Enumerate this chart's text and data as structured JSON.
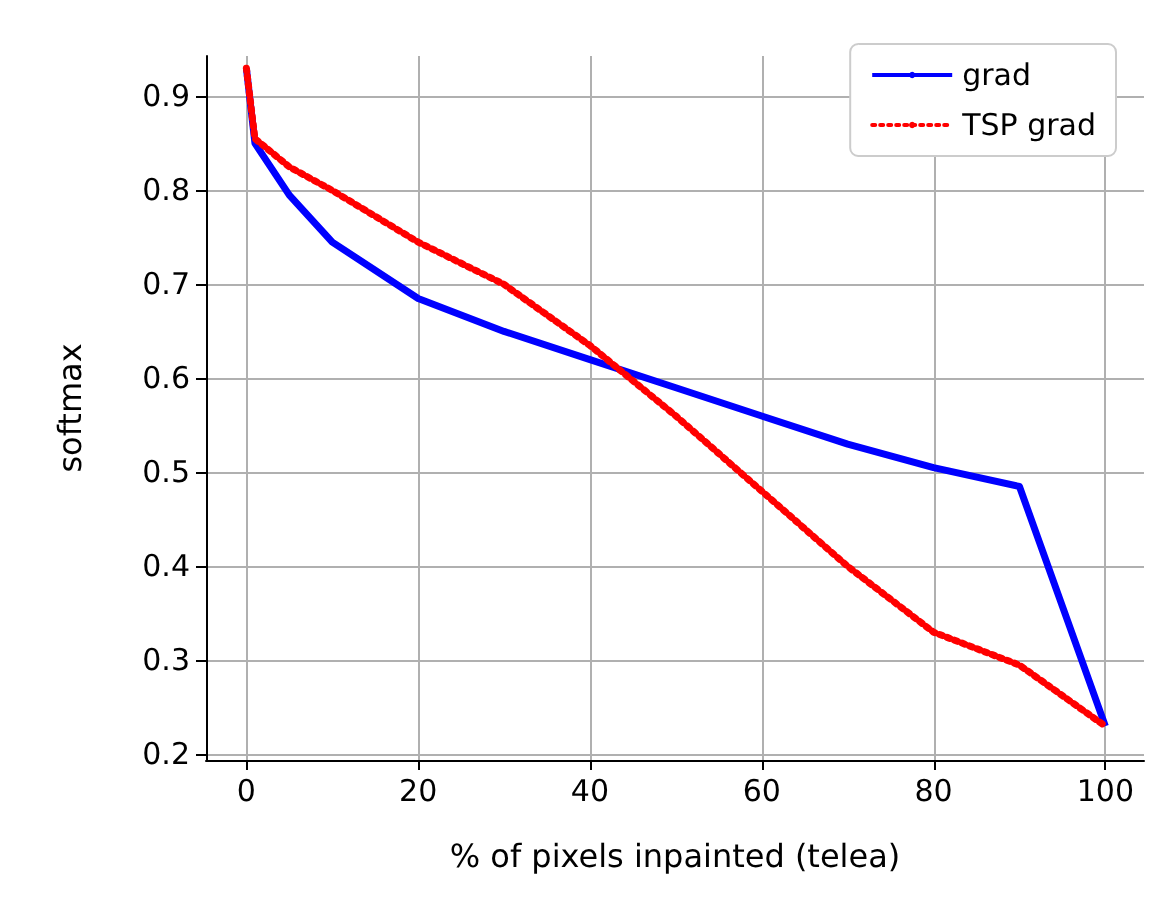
{
  "chart_data": {
    "type": "line",
    "xlabel": "% of pixels inpainted (telea)",
    "ylabel": "softmax",
    "x": [
      0,
      1,
      5,
      10,
      20,
      30,
      40,
      50,
      60,
      70,
      80,
      90,
      100
    ],
    "series": [
      {
        "name": "grad",
        "color": "#0000ff",
        "line_style": "solid",
        "values": [
          0.93,
          0.85,
          0.795,
          0.745,
          0.685,
          0.65,
          0.62,
          0.59,
          0.56,
          0.53,
          0.505,
          0.485,
          0.23
        ]
      },
      {
        "name": "TSP grad",
        "color": "#ff0000",
        "line_style": "dotted",
        "values": [
          0.93,
          0.855,
          0.825,
          0.8,
          0.745,
          0.7,
          0.635,
          0.56,
          0.48,
          0.4,
          0.33,
          0.295,
          0.23
        ]
      }
    ],
    "xlim": [
      -4.7,
      104.5
    ],
    "xticks": [
      0,
      20,
      40,
      60,
      80,
      100
    ],
    "ylim": [
      0.194,
      0.943
    ],
    "yticks": [
      0.2,
      0.3,
      0.4,
      0.5,
      0.6,
      0.7,
      0.8,
      0.9
    ],
    "grid": true,
    "legend": "top right",
    "marker": "none"
  }
}
